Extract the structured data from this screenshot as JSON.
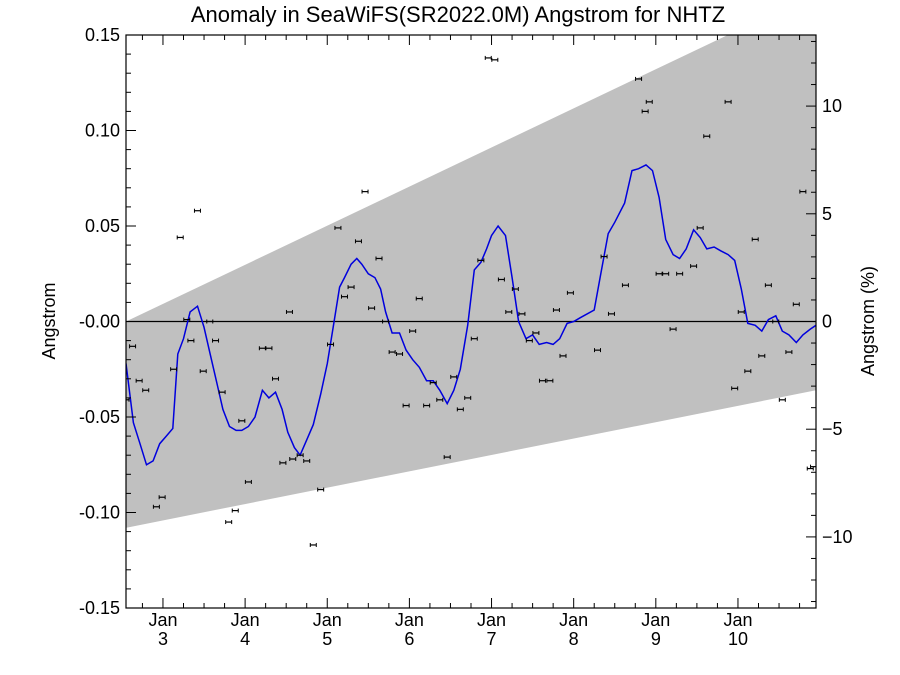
{
  "chart_data": {
    "type": "scatter",
    "title": "Anomaly in SeaWiFS(SR2022.0M) Angstrom for NHTZ",
    "ylabel": "Angstrom",
    "y2label": "Angstrom (%)",
    "xlim": [
      2.55,
      10.95
    ],
    "ylim": [
      -0.15,
      0.15
    ],
    "y2lim": [
      -13.3,
      13.3
    ],
    "yticks": [
      {
        "value": 0.15,
        "label": "0.15"
      },
      {
        "value": 0.1,
        "label": "0.10"
      },
      {
        "value": 0.05,
        "label": "0.05"
      },
      {
        "value": 0.0,
        "label": "-0.00"
      },
      {
        "value": -0.05,
        "label": "-0.05"
      },
      {
        "value": -0.1,
        "label": "-0.10"
      },
      {
        "value": -0.15,
        "label": "-0.15"
      }
    ],
    "y2ticks": [
      {
        "value": 10,
        "label": "10"
      },
      {
        "value": 5,
        "label": "5"
      },
      {
        "value": 0,
        "label": "0"
      },
      {
        "value": -5,
        "label": "−5"
      },
      {
        "value": -10,
        "label": "−10"
      }
    ],
    "xticks": [
      {
        "value": 3,
        "month": "Jan",
        "year": "3"
      },
      {
        "value": 4,
        "month": "Jan",
        "year": "4"
      },
      {
        "value": 5,
        "month": "Jan",
        "year": "5"
      },
      {
        "value": 6,
        "month": "Jan",
        "year": "6"
      },
      {
        "value": 7,
        "month": "Jan",
        "year": "7"
      },
      {
        "value": 8,
        "month": "Jan",
        "year": "8"
      },
      {
        "value": 9,
        "month": "Jan",
        "year": "9"
      },
      {
        "value": 10,
        "month": "Jan",
        "year": "10"
      }
    ],
    "band": {
      "upper": [
        [
          2.55,
          0.0
        ],
        [
          10.95,
          0.172
        ]
      ],
      "lower": [
        [
          2.55,
          -0.108
        ],
        [
          10.95,
          -0.036
        ]
      ]
    },
    "zero_line": 0.0,
    "points": [
      [
        2.55,
        -0.041
      ],
      [
        2.63,
        -0.013
      ],
      [
        2.71,
        -0.031
      ],
      [
        2.79,
        -0.036
      ],
      [
        2.92,
        -0.097
      ],
      [
        2.99,
        -0.092
      ],
      [
        3.13,
        -0.025
      ],
      [
        3.21,
        0.044
      ],
      [
        3.29,
        0.001
      ],
      [
        3.34,
        -0.01
      ],
      [
        3.42,
        0.058
      ],
      [
        3.49,
        -0.026
      ],
      [
        3.57,
        0.0
      ],
      [
        3.64,
        -0.01
      ],
      [
        3.72,
        -0.037
      ],
      [
        3.8,
        -0.105
      ],
      [
        3.88,
        -0.099
      ],
      [
        3.96,
        -0.052
      ],
      [
        4.04,
        -0.084
      ],
      [
        4.21,
        -0.014
      ],
      [
        4.29,
        -0.014
      ],
      [
        4.37,
        -0.03
      ],
      [
        4.46,
        -0.074
      ],
      [
        4.54,
        0.005
      ],
      [
        4.58,
        -0.072
      ],
      [
        4.67,
        -0.07
      ],
      [
        4.75,
        -0.073
      ],
      [
        4.83,
        -0.117
      ],
      [
        4.92,
        -0.088
      ],
      [
        5.04,
        -0.012
      ],
      [
        5.13,
        0.049
      ],
      [
        5.21,
        0.013
      ],
      [
        5.29,
        0.018
      ],
      [
        5.38,
        0.042
      ],
      [
        5.46,
        0.068
      ],
      [
        5.54,
        0.007
      ],
      [
        5.63,
        0.033
      ],
      [
        5.71,
        0.0
      ],
      [
        5.79,
        -0.016
      ],
      [
        5.88,
        -0.017
      ],
      [
        5.96,
        -0.044
      ],
      [
        6.04,
        -0.005
      ],
      [
        6.12,
        0.012
      ],
      [
        6.21,
        -0.044
      ],
      [
        6.29,
        -0.032
      ],
      [
        6.37,
        -0.041
      ],
      [
        6.46,
        -0.071
      ],
      [
        6.54,
        -0.029
      ],
      [
        6.62,
        -0.046
      ],
      [
        6.71,
        -0.04
      ],
      [
        6.79,
        -0.009
      ],
      [
        6.87,
        0.032
      ],
      [
        6.96,
        0.138
      ],
      [
        7.04,
        0.137
      ],
      [
        7.12,
        0.022
      ],
      [
        7.21,
        0.005
      ],
      [
        7.29,
        0.017
      ],
      [
        7.37,
        0.004
      ],
      [
        7.46,
        -0.01
      ],
      [
        7.54,
        -0.006
      ],
      [
        7.62,
        -0.031
      ],
      [
        7.71,
        -0.031
      ],
      [
        7.79,
        0.006
      ],
      [
        7.87,
        -0.018
      ],
      [
        7.96,
        0.015
      ],
      [
        8.29,
        -0.015
      ],
      [
        8.37,
        0.034
      ],
      [
        8.46,
        0.004
      ],
      [
        8.63,
        0.019
      ],
      [
        8.79,
        0.127
      ],
      [
        8.87,
        0.11
      ],
      [
        8.92,
        0.115
      ],
      [
        9.04,
        0.025
      ],
      [
        9.12,
        0.025
      ],
      [
        9.21,
        -0.004
      ],
      [
        9.29,
        0.025
      ],
      [
        9.46,
        0.029
      ],
      [
        9.54,
        0.049
      ],
      [
        9.62,
        0.097
      ],
      [
        9.88,
        0.115
      ],
      [
        9.96,
        -0.035
      ],
      [
        10.04,
        0.005
      ],
      [
        10.12,
        -0.026
      ],
      [
        10.21,
        0.043
      ],
      [
        10.29,
        -0.018
      ],
      [
        10.37,
        0.019
      ],
      [
        10.46,
        0.0
      ],
      [
        10.54,
        -0.041
      ],
      [
        10.62,
        -0.016
      ],
      [
        10.71,
        0.009
      ],
      [
        10.79,
        0.068
      ],
      [
        10.88,
        -0.077
      ],
      [
        10.92,
        -0.076
      ]
    ],
    "smooth_line": [
      [
        2.55,
        -0.022
      ],
      [
        2.64,
        -0.053
      ],
      [
        2.72,
        -0.064
      ],
      [
        2.8,
        -0.075
      ],
      [
        2.88,
        -0.073
      ],
      [
        2.96,
        -0.064
      ],
      [
        3.04,
        -0.06
      ],
      [
        3.12,
        -0.056
      ],
      [
        3.18,
        -0.017
      ],
      [
        3.25,
        -0.009
      ],
      [
        3.33,
        0.005
      ],
      [
        3.42,
        0.008
      ],
      [
        3.5,
        -0.003
      ],
      [
        3.58,
        -0.018
      ],
      [
        3.66,
        -0.033
      ],
      [
        3.73,
        -0.046
      ],
      [
        3.81,
        -0.055
      ],
      [
        3.89,
        -0.057
      ],
      [
        3.96,
        -0.057
      ],
      [
        4.04,
        -0.055
      ],
      [
        4.12,
        -0.05
      ],
      [
        4.21,
        -0.036
      ],
      [
        4.29,
        -0.04
      ],
      [
        4.37,
        -0.037
      ],
      [
        4.45,
        -0.046
      ],
      [
        4.52,
        -0.058
      ],
      [
        4.6,
        -0.066
      ],
      [
        4.67,
        -0.07
      ],
      [
        4.75,
        -0.062
      ],
      [
        4.83,
        -0.054
      ],
      [
        4.92,
        -0.038
      ],
      [
        5.0,
        -0.022
      ],
      [
        5.08,
        -0.001
      ],
      [
        5.15,
        0.018
      ],
      [
        5.21,
        0.023
      ],
      [
        5.29,
        0.03
      ],
      [
        5.36,
        0.033
      ],
      [
        5.42,
        0.03
      ],
      [
        5.5,
        0.025
      ],
      [
        5.58,
        0.023
      ],
      [
        5.65,
        0.017
      ],
      [
        5.71,
        0.005
      ],
      [
        5.79,
        -0.006
      ],
      [
        5.88,
        -0.006
      ],
      [
        5.96,
        -0.015
      ],
      [
        6.04,
        -0.02
      ],
      [
        6.12,
        -0.024
      ],
      [
        6.21,
        -0.031
      ],
      [
        6.29,
        -0.031
      ],
      [
        6.37,
        -0.036
      ],
      [
        6.46,
        -0.043
      ],
      [
        6.54,
        -0.036
      ],
      [
        6.62,
        -0.025
      ],
      [
        6.71,
        -0.002
      ],
      [
        6.79,
        0.027
      ],
      [
        6.87,
        0.031
      ],
      [
        6.94,
        0.038
      ],
      [
        7.0,
        0.045
      ],
      [
        7.08,
        0.05
      ],
      [
        7.17,
        0.045
      ],
      [
        7.25,
        0.023
      ],
      [
        7.33,
        0.0
      ],
      [
        7.42,
        -0.009
      ],
      [
        7.5,
        -0.007
      ],
      [
        7.58,
        -0.012
      ],
      [
        7.67,
        -0.011
      ],
      [
        7.75,
        -0.012
      ],
      [
        7.83,
        -0.009
      ],
      [
        7.92,
        -0.001
      ],
      [
        8.0,
        0.0
      ],
      [
        8.08,
        0.002
      ],
      [
        8.25,
        0.006
      ],
      [
        8.33,
        0.025
      ],
      [
        8.42,
        0.046
      ],
      [
        8.5,
        0.052
      ],
      [
        8.62,
        0.062
      ],
      [
        8.71,
        0.079
      ],
      [
        8.79,
        0.08
      ],
      [
        8.88,
        0.082
      ],
      [
        8.96,
        0.079
      ],
      [
        9.04,
        0.065
      ],
      [
        9.12,
        0.043
      ],
      [
        9.21,
        0.035
      ],
      [
        9.29,
        0.033
      ],
      [
        9.37,
        0.038
      ],
      [
        9.46,
        0.048
      ],
      [
        9.54,
        0.044
      ],
      [
        9.62,
        0.038
      ],
      [
        9.71,
        0.039
      ],
      [
        9.79,
        0.037
      ],
      [
        9.88,
        0.035
      ],
      [
        9.96,
        0.032
      ],
      [
        10.04,
        0.017
      ],
      [
        10.12,
        -0.001
      ],
      [
        10.21,
        -0.002
      ],
      [
        10.29,
        -0.005
      ],
      [
        10.37,
        0.001
      ],
      [
        10.46,
        0.003
      ],
      [
        10.54,
        -0.005
      ],
      [
        10.62,
        -0.007
      ],
      [
        10.71,
        -0.011
      ],
      [
        10.79,
        -0.007
      ],
      [
        10.88,
        -0.004
      ],
      [
        10.95,
        -0.002
      ]
    ],
    "colors": {
      "band": "#c0c0c0",
      "line": "#0000dd",
      "points": "#000000",
      "axes": "#000000"
    },
    "grid": false,
    "legend": "none"
  }
}
